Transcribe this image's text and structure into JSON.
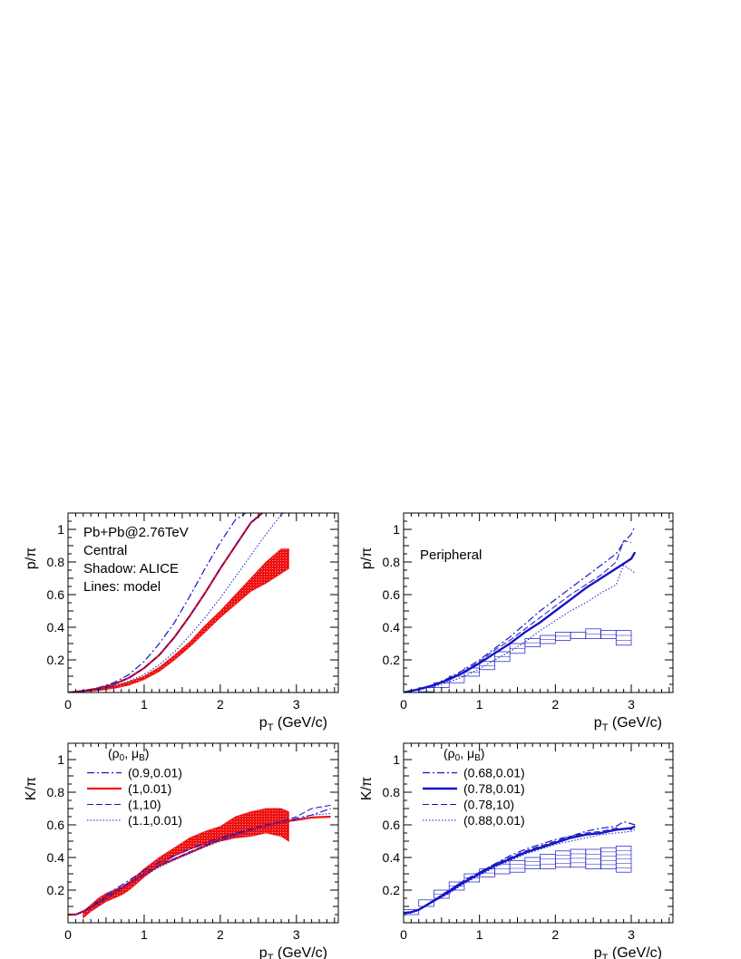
{
  "colors": {
    "red": "#ee1111",
    "blue": "#1515c8",
    "axis": "#000000"
  },
  "chart_data": [
    {
      "id": "tl",
      "type": "line",
      "ylabel": "p/π",
      "xlabel": "p",
      "xlabel_sub": "T",
      "xlabel_unit": " (GeV/c)",
      "xlim": [
        0,
        3.55
      ],
      "ylim": [
        0,
        1.1
      ],
      "xticks": [
        "0",
        "1",
        "2",
        "3"
      ],
      "yticks": [
        "0.2",
        "0.4",
        "0.6",
        "0.8",
        "1"
      ],
      "text_lines": [
        "Pb+Pb@2.76TeV",
        "Central",
        "Shadow: ALICE",
        "Lines: model"
      ],
      "band": {
        "name": "ALICE",
        "color": "red",
        "style": "filled",
        "x": [
          0.2,
          0.4,
          0.6,
          0.8,
          1.0,
          1.2,
          1.4,
          1.6,
          1.8,
          2.0,
          2.2,
          2.4,
          2.6,
          2.8,
          2.9
        ],
        "low": [
          0.005,
          0.012,
          0.025,
          0.045,
          0.08,
          0.13,
          0.2,
          0.28,
          0.37,
          0.46,
          0.54,
          0.62,
          0.67,
          0.73,
          0.76
        ],
        "high": [
          0.012,
          0.022,
          0.04,
          0.065,
          0.1,
          0.155,
          0.23,
          0.31,
          0.41,
          0.5,
          0.6,
          0.7,
          0.8,
          0.88,
          0.88
        ]
      },
      "series": [
        {
          "name": "(0.9,0.01)",
          "color": "blue",
          "dash": "dashdot",
          "width": 1.2,
          "x": [
            0,
            0.2,
            0.4,
            0.6,
            0.8,
            1.0,
            1.2,
            1.4,
            1.6,
            1.8,
            2.0,
            2.2,
            2.4
          ],
          "y": [
            0.0,
            0.012,
            0.03,
            0.06,
            0.11,
            0.19,
            0.3,
            0.43,
            0.59,
            0.76,
            0.92,
            1.06,
            1.12
          ]
        },
        {
          "name": "(1,0.01)",
          "color": "red",
          "dash": "solid",
          "width": 2.2,
          "x": [
            0,
            0.2,
            0.4,
            0.6,
            0.8,
            1.0,
            1.2,
            1.4,
            1.6,
            1.8,
            2.0,
            2.2,
            2.4,
            2.6
          ],
          "y": [
            0.0,
            0.01,
            0.025,
            0.05,
            0.09,
            0.15,
            0.23,
            0.34,
            0.47,
            0.61,
            0.76,
            0.9,
            1.04,
            1.12
          ]
        },
        {
          "name": "(1,10)",
          "color": "blue",
          "dash": "dashed",
          "width": 1.0,
          "x": [
            0,
            0.2,
            0.4,
            0.6,
            0.8,
            1.0,
            1.2,
            1.4,
            1.6,
            1.8,
            2.0,
            2.2,
            2.4,
            2.6
          ],
          "y": [
            0.0,
            0.01,
            0.025,
            0.05,
            0.09,
            0.15,
            0.23,
            0.34,
            0.47,
            0.61,
            0.76,
            0.9,
            1.04,
            1.12
          ]
        },
        {
          "name": "(1.1,0.01)",
          "color": "blue",
          "dash": "dotted",
          "width": 1.0,
          "x": [
            0,
            0.2,
            0.4,
            0.6,
            0.8,
            1.0,
            1.2,
            1.4,
            1.6,
            1.8,
            2.0,
            2.2,
            2.4,
            2.6,
            2.8,
            2.9
          ],
          "y": [
            0.0,
            0.008,
            0.02,
            0.04,
            0.07,
            0.11,
            0.17,
            0.25,
            0.35,
            0.46,
            0.58,
            0.71,
            0.84,
            0.97,
            1.09,
            1.12
          ]
        }
      ]
    },
    {
      "id": "tr",
      "type": "line",
      "ylabel": "p/π",
      "xlabel": "p",
      "xlabel_sub": "T",
      "xlabel_unit": " (GeV/c)",
      "xlim": [
        0,
        3.55
      ],
      "ylim": [
        0,
        1.1
      ],
      "xticks": [
        "0",
        "1",
        "2",
        "3"
      ],
      "yticks": [
        "0.2",
        "0.4",
        "0.6",
        "0.8",
        "1"
      ],
      "text_lines": [
        "Peripheral"
      ],
      "band": {
        "name": "ALICE",
        "color": "blue",
        "style": "boxes",
        "x": [
          0.3,
          0.5,
          0.7,
          0.9,
          1.1,
          1.3,
          1.5,
          1.7,
          1.9,
          2.1,
          2.3,
          2.5,
          2.7,
          2.9
        ],
        "low": [
          0.005,
          0.03,
          0.06,
          0.1,
          0.14,
          0.19,
          0.24,
          0.28,
          0.3,
          0.32,
          0.33,
          0.33,
          0.33,
          0.29
        ],
        "high": [
          0.03,
          0.06,
          0.1,
          0.15,
          0.19,
          0.25,
          0.3,
          0.33,
          0.35,
          0.37,
          0.37,
          0.39,
          0.38,
          0.38
        ]
      },
      "series": [
        {
          "name": "(0.68,0.01)",
          "color": "blue",
          "dash": "dashdot",
          "width": 1.2,
          "x": [
            0,
            0.2,
            0.4,
            0.6,
            0.8,
            1.0,
            1.2,
            1.4,
            1.6,
            1.8,
            2.0,
            2.2,
            2.4,
            2.6,
            2.8,
            2.9,
            3.0,
            3.05
          ],
          "y": [
            0.0,
            0.02,
            0.05,
            0.09,
            0.14,
            0.2,
            0.27,
            0.34,
            0.42,
            0.5,
            0.57,
            0.64,
            0.71,
            0.78,
            0.85,
            0.92,
            0.97,
            1.02
          ]
        },
        {
          "name": "(0.78,0.01)",
          "color": "blue",
          "dash": "solid",
          "width": 2.4,
          "x": [
            0,
            0.2,
            0.4,
            0.6,
            0.8,
            1.0,
            1.2,
            1.4,
            1.6,
            1.8,
            2.0,
            2.2,
            2.4,
            2.6,
            2.8,
            3.0,
            3.05
          ],
          "y": [
            0.0,
            0.02,
            0.045,
            0.08,
            0.125,
            0.18,
            0.24,
            0.3,
            0.37,
            0.43,
            0.5,
            0.57,
            0.64,
            0.7,
            0.76,
            0.82,
            0.86
          ]
        },
        {
          "name": "(0.78,10)",
          "color": "blue",
          "dash": "dashed",
          "width": 1.0,
          "x": [
            0,
            0.2,
            0.4,
            0.6,
            0.8,
            1.0,
            1.2,
            1.4,
            1.6,
            1.8,
            2.0,
            2.2,
            2.4,
            2.6,
            2.8,
            2.9,
            3.0
          ],
          "y": [
            0.0,
            0.02,
            0.05,
            0.085,
            0.13,
            0.19,
            0.26,
            0.32,
            0.39,
            0.46,
            0.53,
            0.6,
            0.66,
            0.72,
            0.8,
            0.93,
            0.92
          ]
        },
        {
          "name": "(0.88,0.01)",
          "color": "blue",
          "dash": "dotted",
          "width": 1.0,
          "x": [
            0,
            0.2,
            0.4,
            0.6,
            0.8,
            1.0,
            1.2,
            1.4,
            1.6,
            1.8,
            2.0,
            2.2,
            2.4,
            2.6,
            2.8,
            2.9,
            3.0,
            3.05
          ],
          "y": [
            0.0,
            0.015,
            0.035,
            0.065,
            0.1,
            0.145,
            0.2,
            0.25,
            0.31,
            0.38,
            0.44,
            0.5,
            0.55,
            0.61,
            0.66,
            0.78,
            0.75,
            0.73
          ]
        }
      ]
    },
    {
      "id": "bl",
      "type": "line",
      "ylabel": "K/π",
      "xlabel": "p",
      "xlabel_sub": "T",
      "xlabel_unit": " (GeV/c)",
      "xlim": [
        0,
        3.55
      ],
      "ylim": [
        0,
        1.1
      ],
      "xticks": [
        "0",
        "1",
        "2",
        "3"
      ],
      "yticks": [
        "0.2",
        "0.4",
        "0.6",
        "0.8",
        "1"
      ],
      "legend_header": {
        "rho": "ρ",
        "rho_sub": "0",
        "mu": "μ",
        "mu_sub": "B"
      },
      "band": {
        "name": "ALICE",
        "color": "red",
        "style": "filled",
        "x": [
          0.2,
          0.3,
          0.4,
          0.5,
          0.6,
          0.7,
          0.8,
          1.0,
          1.2,
          1.4,
          1.6,
          1.8,
          2.0,
          2.2,
          2.4,
          2.6,
          2.8,
          2.9
        ],
        "low": [
          0.03,
          0.07,
          0.1,
          0.13,
          0.15,
          0.17,
          0.2,
          0.28,
          0.35,
          0.41,
          0.45,
          0.48,
          0.5,
          0.52,
          0.53,
          0.55,
          0.53,
          0.5
        ],
        "high": [
          0.07,
          0.11,
          0.15,
          0.18,
          0.2,
          0.22,
          0.25,
          0.33,
          0.4,
          0.46,
          0.52,
          0.56,
          0.59,
          0.65,
          0.68,
          0.7,
          0.7,
          0.68
        ]
      },
      "series": [
        {
          "name": "(0.9,0.01)",
          "color": "blue",
          "dash": "dashdot",
          "width": 1.2,
          "x": [
            0,
            0.1,
            0.2,
            0.4,
            0.6,
            0.8,
            1.0,
            1.2,
            1.4,
            1.6,
            1.8,
            2.0,
            2.2,
            2.4,
            2.6,
            2.8,
            3.0,
            3.2,
            3.45
          ],
          "y": [
            0.05,
            0.05,
            0.07,
            0.13,
            0.2,
            0.26,
            0.32,
            0.37,
            0.41,
            0.45,
            0.49,
            0.52,
            0.55,
            0.57,
            0.6,
            0.62,
            0.64,
            0.66,
            0.7
          ]
        },
        {
          "name": "(1,0.01)",
          "color": "red",
          "dash": "solid",
          "width": 2.2,
          "x": [
            0,
            0.1,
            0.2,
            0.4,
            0.6,
            0.8,
            1.0,
            1.2,
            1.4,
            1.6,
            1.8,
            2.0,
            2.2,
            2.4,
            2.6,
            2.8,
            3.0,
            3.2,
            3.45
          ],
          "y": [
            0.05,
            0.05,
            0.07,
            0.12,
            0.18,
            0.24,
            0.3,
            0.35,
            0.39,
            0.43,
            0.47,
            0.51,
            0.54,
            0.57,
            0.6,
            0.62,
            0.63,
            0.645,
            0.65
          ]
        },
        {
          "name": "(1,10)",
          "color": "blue",
          "dash": "dashed",
          "width": 1.0,
          "x": [
            0,
            0.1,
            0.2,
            0.4,
            0.6,
            0.8,
            1.0,
            1.2,
            1.4,
            1.6,
            1.8,
            2.0,
            2.2,
            2.4,
            2.6,
            2.8,
            3.0,
            3.2,
            3.45
          ],
          "y": [
            0.05,
            0.05,
            0.07,
            0.125,
            0.185,
            0.245,
            0.3,
            0.35,
            0.395,
            0.435,
            0.475,
            0.51,
            0.545,
            0.575,
            0.6,
            0.62,
            0.65,
            0.7,
            0.72
          ]
        },
        {
          "name": "(1.1,0.01)",
          "color": "blue",
          "dash": "dotted",
          "width": 1.0,
          "x": [
            0,
            0.1,
            0.2,
            0.4,
            0.6,
            0.8,
            1.0,
            1.2,
            1.4,
            1.6,
            1.8,
            2.0,
            2.2,
            2.4,
            2.6,
            2.8,
            3.0,
            3.2,
            3.45
          ],
          "y": [
            0.05,
            0.05,
            0.065,
            0.115,
            0.175,
            0.235,
            0.29,
            0.34,
            0.385,
            0.425,
            0.465,
            0.5,
            0.535,
            0.565,
            0.59,
            0.61,
            0.63,
            0.66,
            0.67
          ]
        }
      ]
    },
    {
      "id": "br",
      "type": "line",
      "ylabel": "K/π",
      "xlabel": "p",
      "xlabel_sub": "T",
      "xlabel_unit": " (GeV/c)",
      "xlim": [
        0,
        3.55
      ],
      "ylim": [
        0,
        1.1
      ],
      "xticks": [
        "0",
        "1",
        "2",
        "3"
      ],
      "yticks": [
        "0.2",
        "0.4",
        "0.6",
        "0.8",
        "1"
      ],
      "legend_header": {
        "rho": "ρ",
        "rho_sub": "0",
        "mu": "μ",
        "mu_sub": "B"
      },
      "band": {
        "name": "ALICE",
        "color": "blue",
        "style": "boxes",
        "x": [
          0.1,
          0.3,
          0.5,
          0.7,
          0.9,
          1.1,
          1.3,
          1.5,
          1.7,
          1.9,
          2.1,
          2.3,
          2.5,
          2.7,
          2.9
        ],
        "low": [
          0.05,
          0.1,
          0.15,
          0.2,
          0.25,
          0.28,
          0.3,
          0.31,
          0.33,
          0.33,
          0.34,
          0.34,
          0.33,
          0.33,
          0.31
        ],
        "high": [
          0.08,
          0.14,
          0.2,
          0.25,
          0.3,
          0.33,
          0.36,
          0.38,
          0.4,
          0.42,
          0.44,
          0.45,
          0.45,
          0.46,
          0.47
        ]
      },
      "series": [
        {
          "name": "(0.68,0.01)",
          "color": "blue",
          "dash": "dashdot",
          "width": 1.2,
          "x": [
            0,
            0.1,
            0.2,
            0.4,
            0.6,
            0.8,
            1.0,
            1.2,
            1.4,
            1.6,
            1.8,
            2.0,
            2.2,
            2.4,
            2.6,
            2.8,
            2.9,
            3.05
          ],
          "y": [
            0.06,
            0.06,
            0.08,
            0.14,
            0.2,
            0.26,
            0.31,
            0.36,
            0.41,
            0.45,
            0.48,
            0.51,
            0.53,
            0.56,
            0.58,
            0.59,
            0.62,
            0.6
          ]
        },
        {
          "name": "(0.78,0.01)",
          "color": "blue",
          "dash": "solid",
          "width": 2.4,
          "x": [
            0,
            0.1,
            0.2,
            0.4,
            0.6,
            0.8,
            1.0,
            1.2,
            1.4,
            1.6,
            1.8,
            2.0,
            2.2,
            2.4,
            2.6,
            2.8,
            3.0,
            3.05
          ],
          "y": [
            0.06,
            0.065,
            0.08,
            0.135,
            0.19,
            0.25,
            0.3,
            0.35,
            0.39,
            0.43,
            0.46,
            0.49,
            0.52,
            0.54,
            0.55,
            0.57,
            0.58,
            0.59
          ]
        },
        {
          "name": "(0.78,10)",
          "color": "blue",
          "dash": "dashed",
          "width": 1.0,
          "x": [
            0,
            0.1,
            0.2,
            0.4,
            0.6,
            0.8,
            1.0,
            1.2,
            1.4,
            1.6,
            1.8,
            2.0,
            2.2,
            2.4,
            2.6,
            2.8,
            3.0,
            3.05
          ],
          "y": [
            0.06,
            0.065,
            0.08,
            0.14,
            0.2,
            0.26,
            0.31,
            0.36,
            0.4,
            0.44,
            0.47,
            0.5,
            0.53,
            0.55,
            0.56,
            0.58,
            0.57,
            0.6
          ]
        },
        {
          "name": "(0.88,0.01)",
          "color": "blue",
          "dash": "dotted",
          "width": 1.0,
          "x": [
            0,
            0.1,
            0.2,
            0.4,
            0.6,
            0.8,
            1.0,
            1.2,
            1.4,
            1.6,
            1.8,
            2.0,
            2.2,
            2.4,
            2.6,
            2.8,
            3.0,
            3.05
          ],
          "y": [
            0.06,
            0.06,
            0.075,
            0.13,
            0.18,
            0.24,
            0.29,
            0.34,
            0.38,
            0.42,
            0.45,
            0.48,
            0.5,
            0.52,
            0.54,
            0.55,
            0.56,
            0.57
          ]
        }
      ]
    }
  ]
}
